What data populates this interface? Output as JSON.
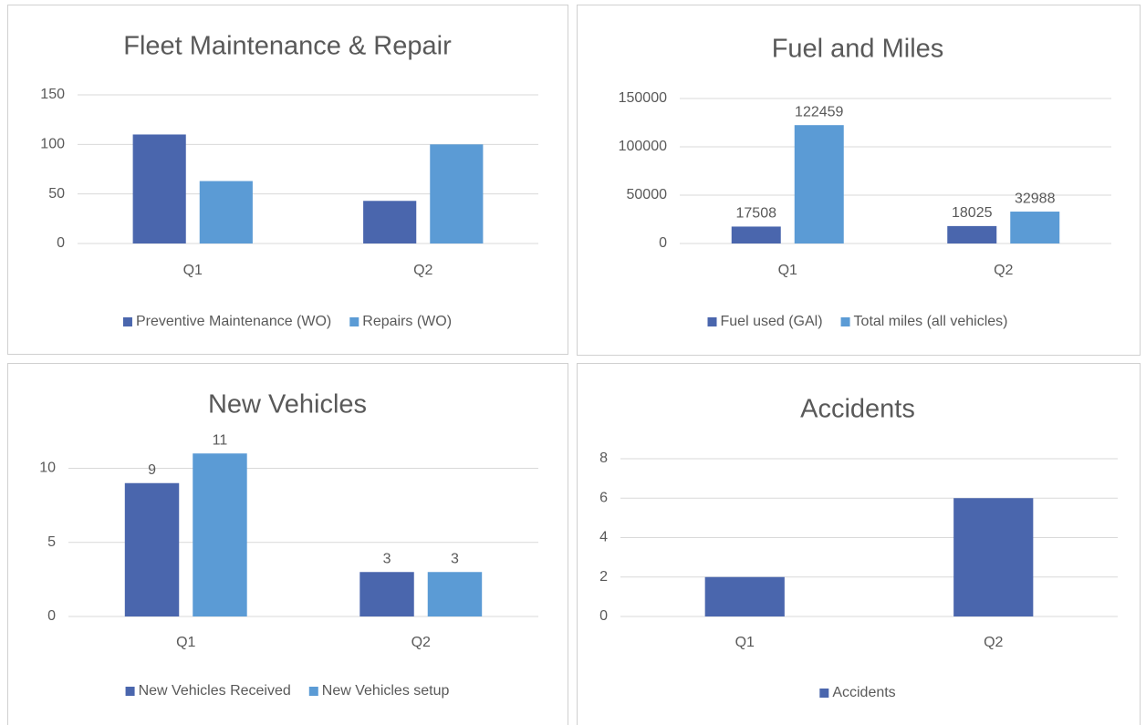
{
  "chart_data": [
    {
      "type": "bar",
      "title": "Fleet Maintenance & Repair",
      "categories": [
        "Q1",
        "Q2"
      ],
      "series": [
        {
          "name": "Preventive Maintenance (WO)",
          "color": "#4a66ad",
          "values": [
            110,
            43
          ]
        },
        {
          "name": "Repairs (WO)",
          "color": "#5b9bd5",
          "values": [
            63,
            100
          ]
        }
      ],
      "ylim": [
        0,
        150
      ],
      "yticks": [
        0,
        50,
        100,
        150
      ],
      "grid": true,
      "legend": "bottom",
      "data_labels": false
    },
    {
      "type": "bar",
      "title": "Fuel and Miles",
      "categories": [
        "Q1",
        "Q2"
      ],
      "series": [
        {
          "name": "Fuel used (GAl)",
          "color": "#4a66ad",
          "values": [
            17508,
            18025
          ]
        },
        {
          "name": "Total miles (all vehicles)",
          "color": "#5b9bd5",
          "values": [
            122459,
            32988
          ]
        }
      ],
      "ylim": [
        0,
        150000
      ],
      "yticks": [
        0,
        50000,
        100000,
        150000
      ],
      "grid": true,
      "legend": "bottom",
      "data_labels": true
    },
    {
      "type": "bar",
      "title": "New Vehicles",
      "categories": [
        "Q1",
        "Q2"
      ],
      "series": [
        {
          "name": "New Vehicles Received",
          "color": "#4a66ad",
          "values": [
            9,
            3
          ]
        },
        {
          "name": "New Vehicles setup",
          "color": "#5b9bd5",
          "values": [
            11,
            3
          ]
        }
      ],
      "ylim": [
        0,
        12
      ],
      "yticks": [
        0,
        5,
        10
      ],
      "grid": true,
      "legend": "bottom",
      "data_labels": true
    },
    {
      "type": "bar",
      "title": "Accidents",
      "categories": [
        "Q1",
        "Q2"
      ],
      "series": [
        {
          "name": "Accidents",
          "color": "#4a66ad",
          "values": [
            2,
            6
          ]
        }
      ],
      "ylim": [
        0,
        8
      ],
      "yticks": [
        0,
        2,
        4,
        6,
        8
      ],
      "grid": true,
      "legend": "bottom",
      "data_labels": false
    }
  ]
}
